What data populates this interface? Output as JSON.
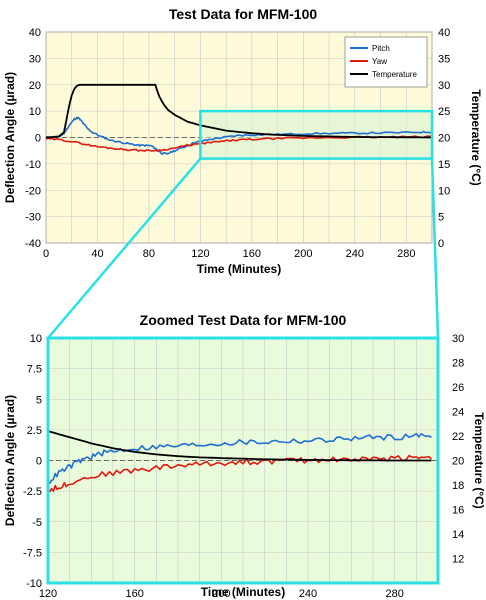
{
  "chart_data": [
    {
      "type": "line",
      "title": "Test Data for MFM-100",
      "xlabel": "Time (Minutes)",
      "ylabel": "Deflection Angle (µrad)",
      "y2label": "Temperature (°C)",
      "xlim": [
        0,
        300
      ],
      "ylim": [
        -40,
        40
      ],
      "y2lim": [
        0,
        40
      ],
      "xticks": [
        "0",
        "40",
        "80",
        "120",
        "160",
        "200",
        "240",
        "280"
      ],
      "yticks": [
        "40",
        "30",
        "20",
        "10",
        "0",
        "-10",
        "-20",
        "-30",
        "-40"
      ],
      "y2ticks": [
        "40",
        "35",
        "30",
        "25",
        "20",
        "15",
        "10",
        "5",
        "0"
      ],
      "grid": true,
      "background": "#fdfbd9",
      "legend_position": "top-right",
      "zoom_window": {
        "x": [
          120,
          300
        ],
        "y2": [
          16,
          25
        ]
      },
      "series": [
        {
          "name": "Pitch",
          "color": "#1f6fd0",
          "axis": "left",
          "x": [
            0,
            5,
            10,
            14,
            18,
            22,
            25,
            28,
            32,
            36,
            42,
            50,
            58,
            66,
            72,
            78,
            82,
            86,
            90,
            94,
            100,
            108,
            115,
            120,
            130,
            140,
            150,
            160,
            175,
            190,
            210,
            230,
            250,
            270,
            290,
            300
          ],
          "y": [
            0,
            0,
            0.2,
            1.5,
            4.5,
            7.0,
            7.5,
            6.0,
            3.5,
            2.0,
            0.5,
            -1.0,
            -1.8,
            -2.5,
            -3.0,
            -3.0,
            -3.2,
            -4.5,
            -6.0,
            -6.2,
            -5.0,
            -3.5,
            -2.0,
            -1.5,
            -0.5,
            0.2,
            0.8,
            1.0,
            1.1,
            1.3,
            1.5,
            1.6,
            1.7,
            1.8,
            2.0,
            2.1
          ]
        },
        {
          "name": "Yaw",
          "color": "#e0190f",
          "axis": "left",
          "x": [
            0,
            10,
            20,
            30,
            40,
            50,
            60,
            70,
            80,
            90,
            100,
            110,
            120,
            130,
            140,
            150,
            160,
            180,
            200,
            220,
            240,
            260,
            280,
            300
          ],
          "y": [
            -0.5,
            -0.8,
            -1.5,
            -2.5,
            -3.5,
            -4.0,
            -4.5,
            -4.8,
            -5.0,
            -4.8,
            -4.0,
            -3.0,
            -2.3,
            -1.8,
            -1.3,
            -0.9,
            -0.7,
            -0.4,
            -0.2,
            0,
            0.1,
            0.1,
            0.2,
            0.3
          ]
        },
        {
          "name": "Temperature",
          "color": "#000000",
          "axis": "right",
          "x": [
            0,
            10,
            14,
            16,
            18,
            20,
            22,
            24,
            26,
            28,
            85,
            86,
            88,
            90,
            92,
            95,
            100,
            110,
            120,
            140,
            160,
            180,
            200,
            240,
            300
          ],
          "y": [
            20,
            20.2,
            21,
            23.5,
            26,
            28,
            29.2,
            29.8,
            30,
            30,
            30,
            29.2,
            27.8,
            26.9,
            26.1,
            25.2,
            24.3,
            23.0,
            22.3,
            21.3,
            20.8,
            20.5,
            20.3,
            20.1,
            20.0
          ]
        }
      ]
    },
    {
      "type": "line",
      "title": "Zoomed Test Data for MFM-100",
      "xlabel": "Time (Minutes)",
      "ylabel": "Deflection Angle (µrad)",
      "y2label": "Temperature (°C)",
      "xlim": [
        120,
        300
      ],
      "ylim": [
        -10,
        10
      ],
      "y2lim": [
        10,
        30
      ],
      "xticks": [
        "120",
        "160",
        "200",
        "240",
        "280"
      ],
      "yticks": [
        "10",
        "7.5",
        "5",
        "2.5",
        "0",
        "-2.5",
        "-5",
        "-7.5",
        "-10"
      ],
      "y2ticks": [
        "30",
        "28",
        "26",
        "24",
        "22",
        "20",
        "18",
        "16",
        "14",
        "12"
      ],
      "grid": true,
      "background": "#eafbdc",
      "series": [
        {
          "name": "Pitch",
          "color": "#1f6fd0",
          "axis": "left",
          "x": [
            120,
            125,
            130,
            135,
            140,
            145,
            150,
            160,
            170,
            180,
            190,
            200,
            210,
            220,
            230,
            240,
            250,
            260,
            270,
            280,
            290,
            297
          ],
          "y": [
            -1.8,
            -1.0,
            -0.5,
            0,
            0.3,
            0.6,
            0.8,
            1.0,
            1.1,
            1.2,
            1.3,
            1.4,
            1.5,
            1.5,
            1.6,
            1.6,
            1.7,
            1.8,
            1.9,
            1.9,
            2.0,
            2.1
          ]
        },
        {
          "name": "Yaw",
          "color": "#e0190f",
          "axis": "left",
          "x": [
            120,
            125,
            130,
            140,
            150,
            160,
            170,
            180,
            190,
            200,
            210,
            220,
            230,
            240,
            250,
            260,
            270,
            280,
            290,
            297
          ],
          "y": [
            -2.4,
            -2.2,
            -1.8,
            -1.3,
            -1.0,
            -0.8,
            -0.6,
            -0.4,
            -0.3,
            -0.2,
            -0.1,
            -0.1,
            0,
            0,
            0.1,
            0.1,
            0.1,
            0.2,
            0.3,
            0.3
          ]
        },
        {
          "name": "Temperature",
          "color": "#000000",
          "axis": "right",
          "x": [
            120,
            130,
            140,
            150,
            160,
            170,
            180,
            190,
            200,
            220,
            240,
            260,
            280,
            297
          ],
          "y": [
            22.4,
            21.9,
            21.4,
            21.0,
            20.7,
            20.5,
            20.35,
            20.25,
            20.2,
            20.1,
            20.05,
            20.02,
            20.0,
            20.0
          ]
        }
      ]
    }
  ]
}
